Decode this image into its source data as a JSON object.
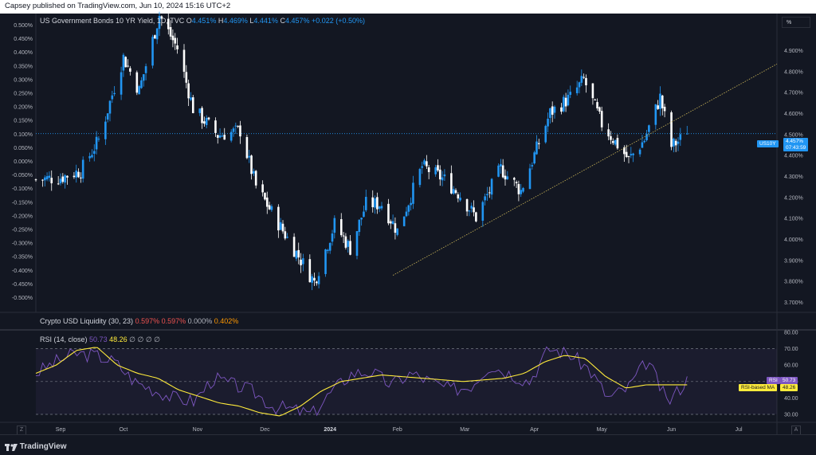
{
  "publisher_line": "Capsey published on TradingView.com, Jun 10, 2024 15:16 UTC+2",
  "main_header": {
    "symbol": "US Government Bonds 10 YR Yield, 1D, TVC",
    "o_label": "O",
    "o_value": "4.451%",
    "h_label": "H",
    "h_value": "4.469%",
    "l_label": "L",
    "l_value": "4.441%",
    "c_label": "C",
    "c_value": "4.457%",
    "change": "+0.022 (+0.50%)"
  },
  "scale_button": "%",
  "left_axis_labels": [
    "0.500%",
    "0.450%",
    "0.400%",
    "0.350%",
    "0.300%",
    "0.250%",
    "0.200%",
    "0.150%",
    "0.100%",
    "0.050%",
    "0.000%",
    "-0.050%",
    "-0.100%",
    "-0.150%",
    "-0.200%",
    "-0.250%",
    "-0.300%",
    "-0.350%",
    "-0.400%",
    "-0.450%",
    "-0.500%"
  ],
  "right_axis_labels": [
    "4.900%",
    "4.800%",
    "4.700%",
    "4.600%",
    "4.500%",
    "4.400%",
    "4.300%",
    "4.200%",
    "4.100%",
    "4.000%",
    "3.900%",
    "3.800%",
    "3.700%"
  ],
  "price_tag": {
    "symbol": "US10Y",
    "price": "4.457%",
    "countdown": "07:43:59"
  },
  "liquidity_indicator": {
    "name": "Crypto USD Liquidity (30, 23)",
    "v1": "0.597%",
    "v2": "0.597%",
    "v3": "0.000%",
    "v4": "0.402%"
  },
  "rsi_indicator": {
    "name": "RSI (14, close)",
    "rsi_value": "50.73",
    "ma_value": "48.26",
    "nulls": "∅ ∅ ∅ ∅",
    "axis_labels": [
      "80.00",
      "70.00",
      "60.00",
      "50.00",
      "40.00",
      "30.00"
    ],
    "tag_rsi_label": "RSI",
    "tag_rsi_value": "50.73",
    "tag_ma_label": "RSI-based MA",
    "tag_ma_value": "48.26"
  },
  "time_axis": [
    "Sep",
    "Oct",
    "Nov",
    "Dec",
    "2024",
    "Feb",
    "Mar",
    "Apr",
    "May",
    "Jun",
    "Jul"
  ],
  "footer": {
    "logo": "TradingView",
    "z_button": "Z",
    "a_button": "A"
  },
  "colors": {
    "up": "#2196f3",
    "down": "#ffffff",
    "rsi_line": "#7e57c2",
    "rsi_ma": "#ffeb3b",
    "trendline": "#c9b458",
    "background": "#131722"
  },
  "chart_data": {
    "type": "candlestick",
    "title": "US Government Bonds 10 YR Yield, 1D, TVC",
    "x_range": [
      "2023-08-25",
      "2024-06-10"
    ],
    "y_range_percent": [
      3.66,
      5.02
    ],
    "close_path_approx": [
      {
        "date": "2023-08-25",
        "close": 4.25
      },
      {
        "date": "2023-09-05",
        "close": 4.26
      },
      {
        "date": "2023-09-14",
        "close": 4.29
      },
      {
        "date": "2023-09-22",
        "close": 4.43
      },
      {
        "date": "2023-10-03",
        "close": 4.8
      },
      {
        "date": "2023-10-10",
        "close": 4.65
      },
      {
        "date": "2023-10-19",
        "close": 4.99
      },
      {
        "date": "2023-10-27",
        "close": 4.84
      },
      {
        "date": "2023-11-03",
        "close": 4.57
      },
      {
        "date": "2023-11-14",
        "close": 4.45
      },
      {
        "date": "2023-11-24",
        "close": 4.47
      },
      {
        "date": "2023-12-01",
        "close": 4.22
      },
      {
        "date": "2023-12-13",
        "close": 4.02
      },
      {
        "date": "2023-12-27",
        "close": 3.79
      },
      {
        "date": "2024-01-05",
        "close": 4.05
      },
      {
        "date": "2024-01-12",
        "close": 3.94
      },
      {
        "date": "2024-01-19",
        "close": 4.14
      },
      {
        "date": "2024-01-26",
        "close": 4.14
      },
      {
        "date": "2024-02-02",
        "close": 4.02
      },
      {
        "date": "2024-02-13",
        "close": 4.31
      },
      {
        "date": "2024-02-23",
        "close": 4.25
      },
      {
        "date": "2024-03-01",
        "close": 4.18
      },
      {
        "date": "2024-03-08",
        "close": 4.08
      },
      {
        "date": "2024-03-19",
        "close": 4.3
      },
      {
        "date": "2024-03-28",
        "close": 4.2
      },
      {
        "date": "2024-04-10",
        "close": 4.55
      },
      {
        "date": "2024-04-19",
        "close": 4.62
      },
      {
        "date": "2024-04-25",
        "close": 4.7
      },
      {
        "date": "2024-05-03",
        "close": 4.5
      },
      {
        "date": "2024-05-15",
        "close": 4.34
      },
      {
        "date": "2024-05-22",
        "close": 4.43
      },
      {
        "date": "2024-05-29",
        "close": 4.62
      },
      {
        "date": "2024-06-03",
        "close": 4.4
      },
      {
        "date": "2024-06-07",
        "close": 4.43
      },
      {
        "date": "2024-06-10",
        "close": 4.457
      }
    ],
    "trendline": {
      "from": {
        "date": "2024-01-31",
        "value": 3.82
      },
      "to": {
        "date": "2024-07-20",
        "value": 4.77
      }
    },
    "rsi": {
      "ylim": [
        25,
        80
      ],
      "levels": [
        70,
        50,
        30
      ],
      "rsi_path_approx": [
        55,
        62,
        67,
        66,
        62,
        50,
        45,
        40,
        38,
        52,
        48,
        44,
        35,
        33,
        30,
        44,
        55,
        56,
        48,
        55,
        50,
        45,
        47,
        60,
        55,
        50,
        70,
        67,
        58,
        40,
        46,
        63,
        37,
        51
      ],
      "ma_path_approx": [
        55,
        60,
        69,
        71,
        60,
        55,
        52,
        45,
        41,
        37,
        35,
        31,
        29,
        35,
        44,
        50,
        52,
        54,
        53,
        52,
        51,
        50,
        51,
        52,
        55,
        62,
        66,
        64,
        53,
        46,
        48,
        48,
        48
      ]
    }
  }
}
